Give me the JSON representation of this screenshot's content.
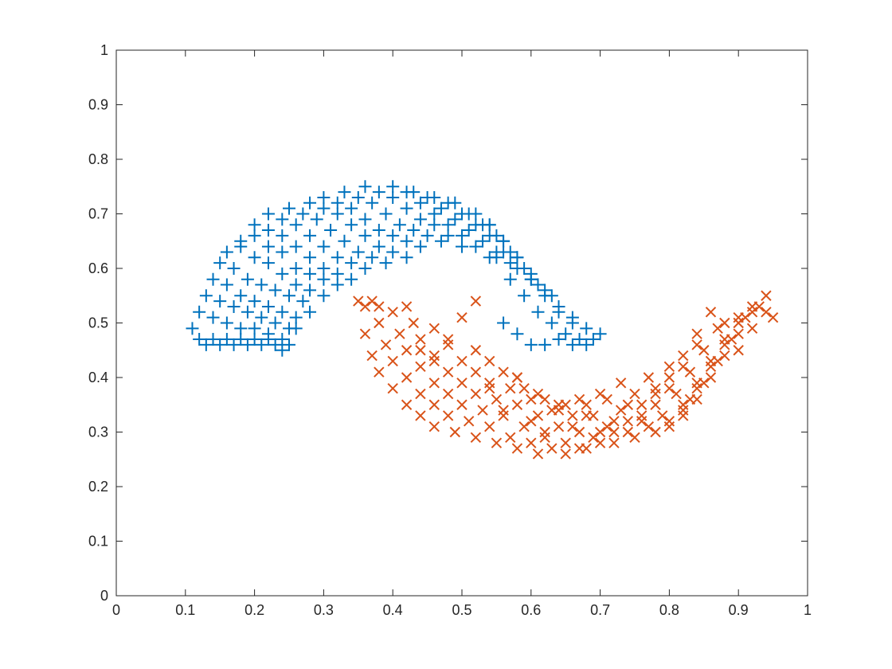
{
  "chart_data": {
    "type": "scatter",
    "title": "",
    "xlabel": "",
    "ylabel": "",
    "xlim": [
      0,
      1
    ],
    "ylim": [
      0,
      1
    ],
    "xticks": [
      "0",
      "0.1",
      "0.2",
      "0.3",
      "0.4",
      "0.5",
      "0.6",
      "0.7",
      "0.8",
      "0.9",
      "1"
    ],
    "yticks": [
      "0",
      "0.1",
      "0.2",
      "0.3",
      "0.4",
      "0.5",
      "0.6",
      "0.7",
      "0.8",
      "0.9",
      "1"
    ],
    "grid": false,
    "legend": "none",
    "series": [
      {
        "marker": "plus",
        "color": "#0072BD",
        "x": [
          0.11,
          0.12,
          0.13,
          0.14,
          0.15,
          0.16,
          0.17,
          0.18,
          0.19,
          0.2,
          0.21,
          0.22,
          0.23,
          0.24,
          0.25,
          0.12,
          0.14,
          0.16,
          0.18,
          0.2,
          0.22,
          0.24,
          0.26,
          0.13,
          0.15,
          0.17,
          0.19,
          0.21,
          0.23,
          0.25,
          0.14,
          0.16,
          0.18,
          0.2,
          0.22,
          0.24,
          0.26,
          0.28,
          0.15,
          0.17,
          0.19,
          0.21,
          0.23,
          0.25,
          0.27,
          0.16,
          0.18,
          0.2,
          0.22,
          0.24,
          0.26,
          0.28,
          0.3,
          0.18,
          0.2,
          0.22,
          0.24,
          0.26,
          0.28,
          0.3,
          0.32,
          0.2,
          0.22,
          0.24,
          0.26,
          0.28,
          0.3,
          0.32,
          0.34,
          0.22,
          0.24,
          0.26,
          0.28,
          0.3,
          0.32,
          0.34,
          0.36,
          0.25,
          0.27,
          0.29,
          0.31,
          0.33,
          0.35,
          0.37,
          0.39,
          0.28,
          0.3,
          0.32,
          0.34,
          0.36,
          0.38,
          0.4,
          0.42,
          0.3,
          0.32,
          0.34,
          0.36,
          0.38,
          0.4,
          0.42,
          0.44,
          0.33,
          0.35,
          0.37,
          0.39,
          0.41,
          0.43,
          0.45,
          0.47,
          0.36,
          0.38,
          0.4,
          0.42,
          0.44,
          0.46,
          0.48,
          0.5,
          0.4,
          0.42,
          0.44,
          0.46,
          0.48,
          0.5,
          0.52,
          0.54,
          0.43,
          0.45,
          0.47,
          0.49,
          0.51,
          0.53,
          0.55,
          0.57,
          0.46,
          0.48,
          0.5,
          0.52,
          0.54,
          0.56,
          0.58,
          0.6,
          0.49,
          0.51,
          0.53,
          0.55,
          0.57,
          0.59,
          0.61,
          0.63,
          0.52,
          0.54,
          0.56,
          0.58,
          0.6,
          0.62,
          0.64,
          0.66,
          0.54,
          0.56,
          0.58,
          0.6,
          0.62,
          0.64,
          0.66,
          0.68,
          0.55,
          0.57,
          0.59,
          0.61,
          0.63,
          0.65,
          0.67,
          0.69,
          0.56,
          0.58,
          0.6,
          0.62,
          0.64,
          0.66,
          0.68,
          0.7
        ],
        "y": [
          0.49,
          0.47,
          0.46,
          0.47,
          0.46,
          0.47,
          0.46,
          0.47,
          0.46,
          0.47,
          0.46,
          0.47,
          0.46,
          0.45,
          0.46,
          0.52,
          0.51,
          0.5,
          0.49,
          0.49,
          0.48,
          0.47,
          0.49,
          0.55,
          0.54,
          0.53,
          0.52,
          0.51,
          0.5,
          0.49,
          0.58,
          0.57,
          0.55,
          0.54,
          0.53,
          0.52,
          0.51,
          0.52,
          0.61,
          0.6,
          0.58,
          0.57,
          0.56,
          0.55,
          0.54,
          0.63,
          0.64,
          0.62,
          0.61,
          0.59,
          0.57,
          0.56,
          0.55,
          0.65,
          0.66,
          0.64,
          0.63,
          0.6,
          0.59,
          0.58,
          0.57,
          0.68,
          0.67,
          0.66,
          0.64,
          0.62,
          0.6,
          0.59,
          0.58,
          0.7,
          0.69,
          0.68,
          0.66,
          0.64,
          0.62,
          0.61,
          0.6,
          0.71,
          0.7,
          0.69,
          0.67,
          0.65,
          0.63,
          0.62,
          0.61,
          0.72,
          0.71,
          0.7,
          0.68,
          0.66,
          0.64,
          0.63,
          0.62,
          0.73,
          0.72,
          0.71,
          0.69,
          0.67,
          0.66,
          0.65,
          0.64,
          0.74,
          0.73,
          0.72,
          0.7,
          0.68,
          0.67,
          0.66,
          0.65,
          0.75,
          0.74,
          0.73,
          0.71,
          0.69,
          0.68,
          0.66,
          0.64,
          0.75,
          0.74,
          0.72,
          0.7,
          0.68,
          0.66,
          0.64,
          0.62,
          0.74,
          0.73,
          0.71,
          0.69,
          0.67,
          0.65,
          0.63,
          0.61,
          0.73,
          0.72,
          0.7,
          0.68,
          0.66,
          0.63,
          0.6,
          0.58,
          0.72,
          0.7,
          0.68,
          0.66,
          0.63,
          0.6,
          0.57,
          0.55,
          0.7,
          0.68,
          0.65,
          0.62,
          0.59,
          0.56,
          0.53,
          0.51,
          0.68,
          0.65,
          0.62,
          0.58,
          0.55,
          0.52,
          0.5,
          0.49,
          0.62,
          0.58,
          0.55,
          0.52,
          0.5,
          0.48,
          0.47,
          0.47,
          0.5,
          0.48,
          0.46,
          0.46,
          0.47,
          0.46,
          0.46,
          0.48
        ]
      },
      {
        "marker": "x",
        "color": "#D95319",
        "x": [
          0.35,
          0.36,
          0.37,
          0.38,
          0.36,
          0.38,
          0.4,
          0.42,
          0.37,
          0.39,
          0.41,
          0.43,
          0.38,
          0.4,
          0.42,
          0.44,
          0.46,
          0.4,
          0.42,
          0.44,
          0.46,
          0.48,
          0.42,
          0.44,
          0.46,
          0.48,
          0.5,
          0.52,
          0.44,
          0.46,
          0.48,
          0.5,
          0.52,
          0.54,
          0.46,
          0.48,
          0.5,
          0.52,
          0.54,
          0.56,
          0.58,
          0.49,
          0.51,
          0.53,
          0.55,
          0.57,
          0.59,
          0.61,
          0.52,
          0.54,
          0.56,
          0.58,
          0.6,
          0.62,
          0.64,
          0.55,
          0.57,
          0.59,
          0.61,
          0.63,
          0.65,
          0.67,
          0.58,
          0.6,
          0.62,
          0.64,
          0.66,
          0.68,
          0.7,
          0.61,
          0.63,
          0.65,
          0.67,
          0.69,
          0.71,
          0.73,
          0.65,
          0.67,
          0.69,
          0.71,
          0.73,
          0.75,
          0.77,
          0.68,
          0.7,
          0.72,
          0.74,
          0.76,
          0.78,
          0.8,
          0.72,
          0.74,
          0.76,
          0.78,
          0.8,
          0.82,
          0.84,
          0.75,
          0.77,
          0.79,
          0.81,
          0.83,
          0.85,
          0.87,
          0.78,
          0.8,
          0.82,
          0.84,
          0.86,
          0.88,
          0.9,
          0.8,
          0.82,
          0.84,
          0.86,
          0.88,
          0.9,
          0.92,
          0.82,
          0.84,
          0.86,
          0.88,
          0.9,
          0.92,
          0.94,
          0.83,
          0.85,
          0.87,
          0.89,
          0.91,
          0.93,
          0.95,
          0.44,
          0.46,
          0.48,
          0.5,
          0.52,
          0.54,
          0.56,
          0.58,
          0.6,
          0.62,
          0.64,
          0.66,
          0.68,
          0.7,
          0.72,
          0.74,
          0.76,
          0.78,
          0.8,
          0.82,
          0.84,
          0.86,
          0.88,
          0.9,
          0.92,
          0.94
        ],
        "y": [
          0.54,
          0.53,
          0.54,
          0.53,
          0.48,
          0.5,
          0.52,
          0.53,
          0.44,
          0.46,
          0.48,
          0.5,
          0.41,
          0.43,
          0.45,
          0.47,
          0.49,
          0.38,
          0.4,
          0.42,
          0.44,
          0.46,
          0.35,
          0.37,
          0.39,
          0.41,
          0.43,
          0.45,
          0.33,
          0.35,
          0.37,
          0.39,
          0.41,
          0.43,
          0.31,
          0.33,
          0.35,
          0.37,
          0.39,
          0.41,
          0.4,
          0.3,
          0.32,
          0.34,
          0.36,
          0.38,
          0.38,
          0.37,
          0.29,
          0.31,
          0.33,
          0.35,
          0.36,
          0.36,
          0.35,
          0.28,
          0.29,
          0.31,
          0.33,
          0.34,
          0.35,
          0.36,
          0.27,
          0.28,
          0.29,
          0.31,
          0.33,
          0.35,
          0.37,
          0.26,
          0.27,
          0.28,
          0.3,
          0.33,
          0.36,
          0.39,
          0.26,
          0.27,
          0.29,
          0.31,
          0.34,
          0.37,
          0.4,
          0.27,
          0.28,
          0.3,
          0.32,
          0.35,
          0.38,
          0.42,
          0.28,
          0.3,
          0.32,
          0.35,
          0.38,
          0.42,
          0.46,
          0.29,
          0.31,
          0.33,
          0.37,
          0.41,
          0.45,
          0.49,
          0.3,
          0.32,
          0.35,
          0.39,
          0.43,
          0.47,
          0.51,
          0.31,
          0.34,
          0.38,
          0.42,
          0.46,
          0.5,
          0.53,
          0.33,
          0.36,
          0.4,
          0.44,
          0.48,
          0.52,
          0.55,
          0.36,
          0.39,
          0.43,
          0.47,
          0.51,
          0.53,
          0.51,
          0.45,
          0.43,
          0.47,
          0.51,
          0.54,
          0.38,
          0.34,
          0.4,
          0.32,
          0.3,
          0.34,
          0.31,
          0.33,
          0.3,
          0.32,
          0.35,
          0.33,
          0.37,
          0.4,
          0.44,
          0.48,
          0.52,
          0.5,
          0.45,
          0.49,
          0.52
        ]
      }
    ]
  }
}
